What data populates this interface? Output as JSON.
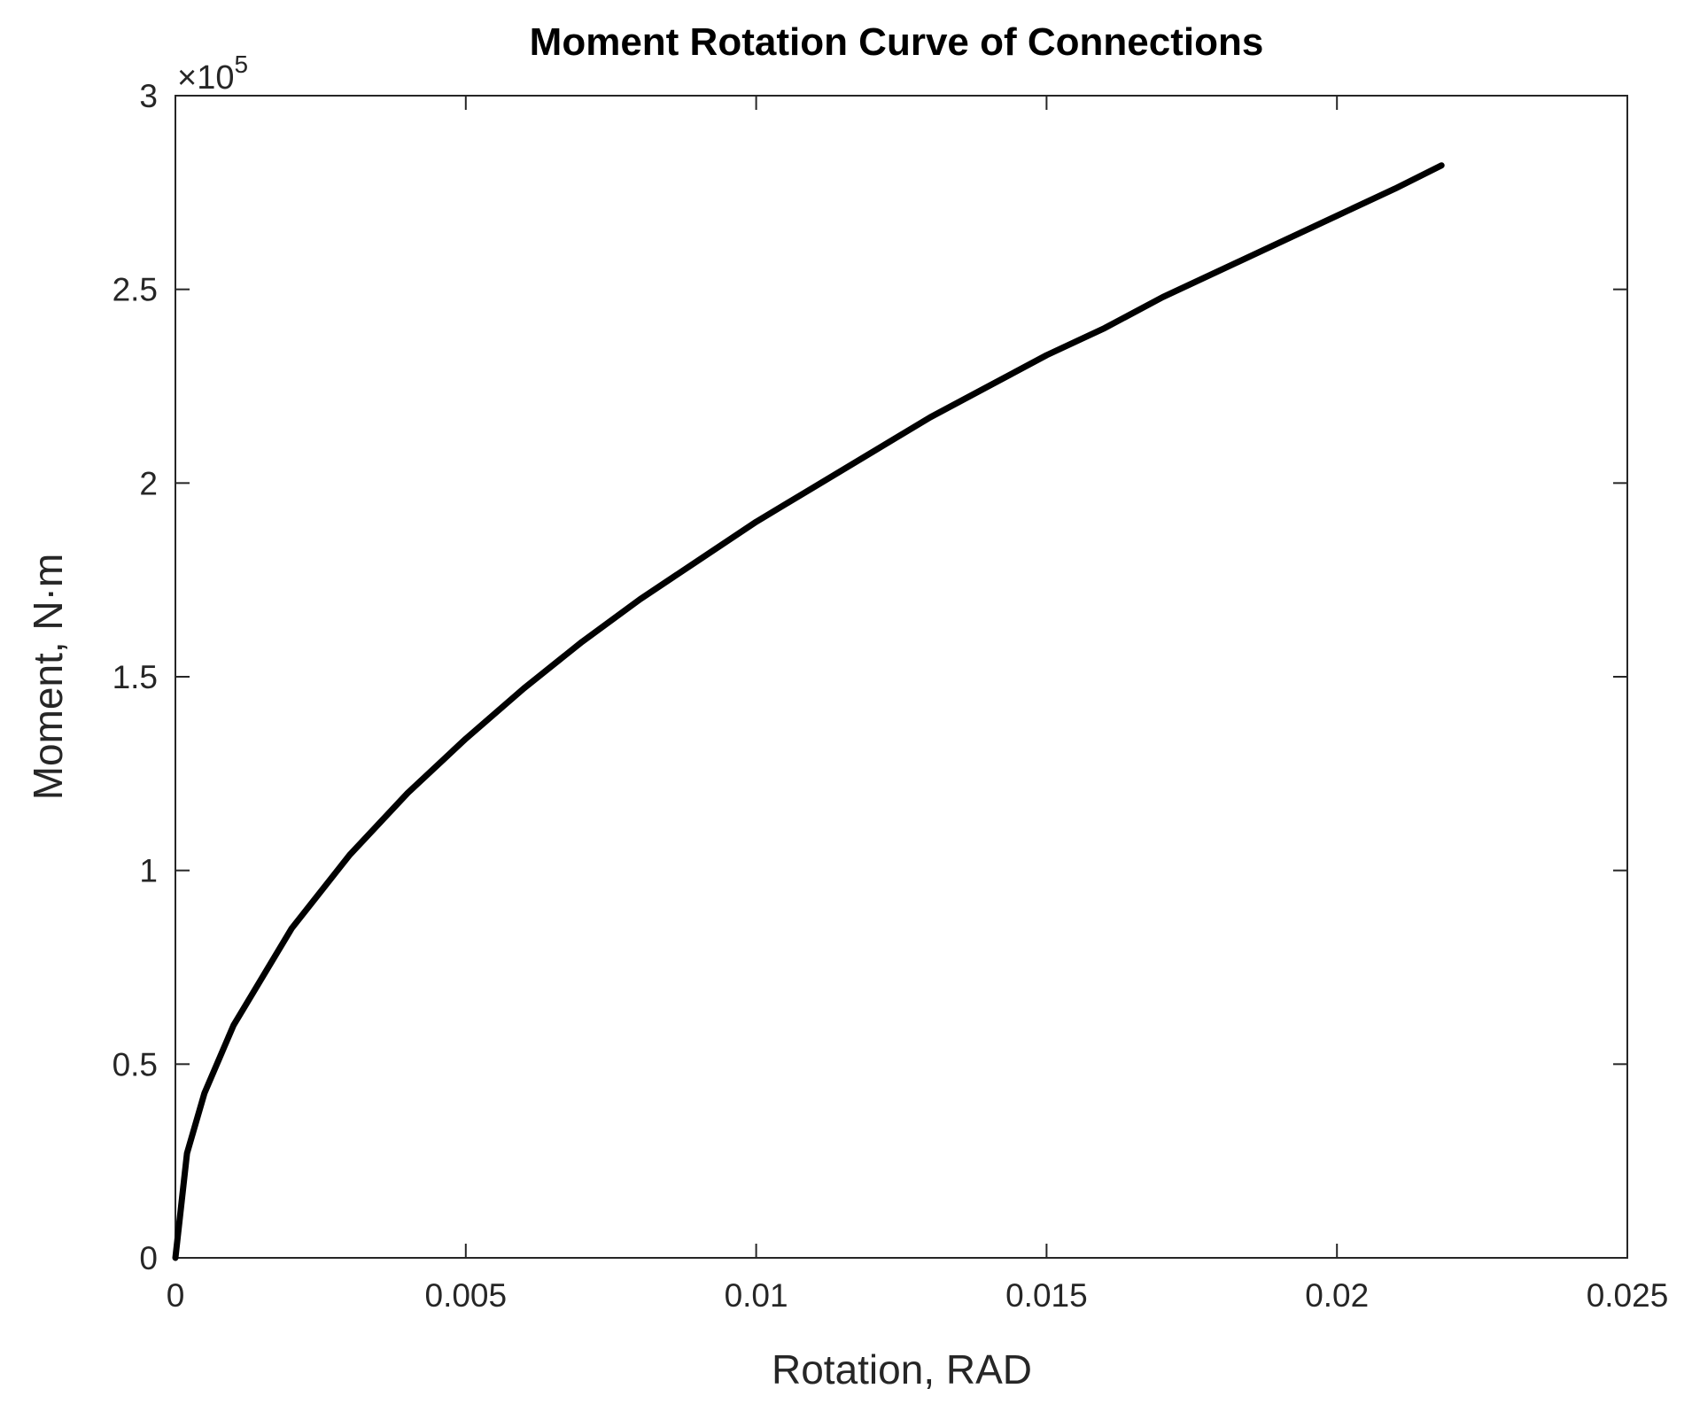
{
  "chart_data": {
    "type": "line",
    "title": "Moment Rotation Curve of Connections",
    "x_label": "Rotation, RAD",
    "y_label": "Moment,  N·m",
    "y_multiplier_base": "×10",
    "y_multiplier_exponent": "5",
    "x": [
      0,
      0.0002,
      0.0005,
      0.001,
      0.002,
      0.003,
      0.004,
      0.005,
      0.006,
      0.007,
      0.008,
      0.009,
      0.01,
      0.011,
      0.012,
      0.013,
      0.014,
      0.015,
      0.016,
      0.017,
      0.018,
      0.019,
      0.02,
      0.021,
      0.0218
    ],
    "series": [
      {
        "name": "Moment",
        "color": "#000000",
        "values": [
          0,
          0.27,
          0.425,
          0.6,
          0.85,
          1.04,
          1.2,
          1.34,
          1.47,
          1.59,
          1.7,
          1.8,
          1.9,
          1.99,
          2.08,
          2.17,
          2.25,
          2.33,
          2.4,
          2.48,
          2.55,
          2.62,
          2.69,
          2.76,
          2.82
        ]
      }
    ],
    "xlim": [
      0,
      0.025
    ],
    "ylim": [
      0,
      3
    ],
    "xticks": [
      0,
      0.005,
      0.01,
      0.015,
      0.02,
      0.025
    ],
    "yticks": [
      0,
      0.5,
      1,
      1.5,
      2,
      2.5,
      3
    ],
    "grid": false
  }
}
